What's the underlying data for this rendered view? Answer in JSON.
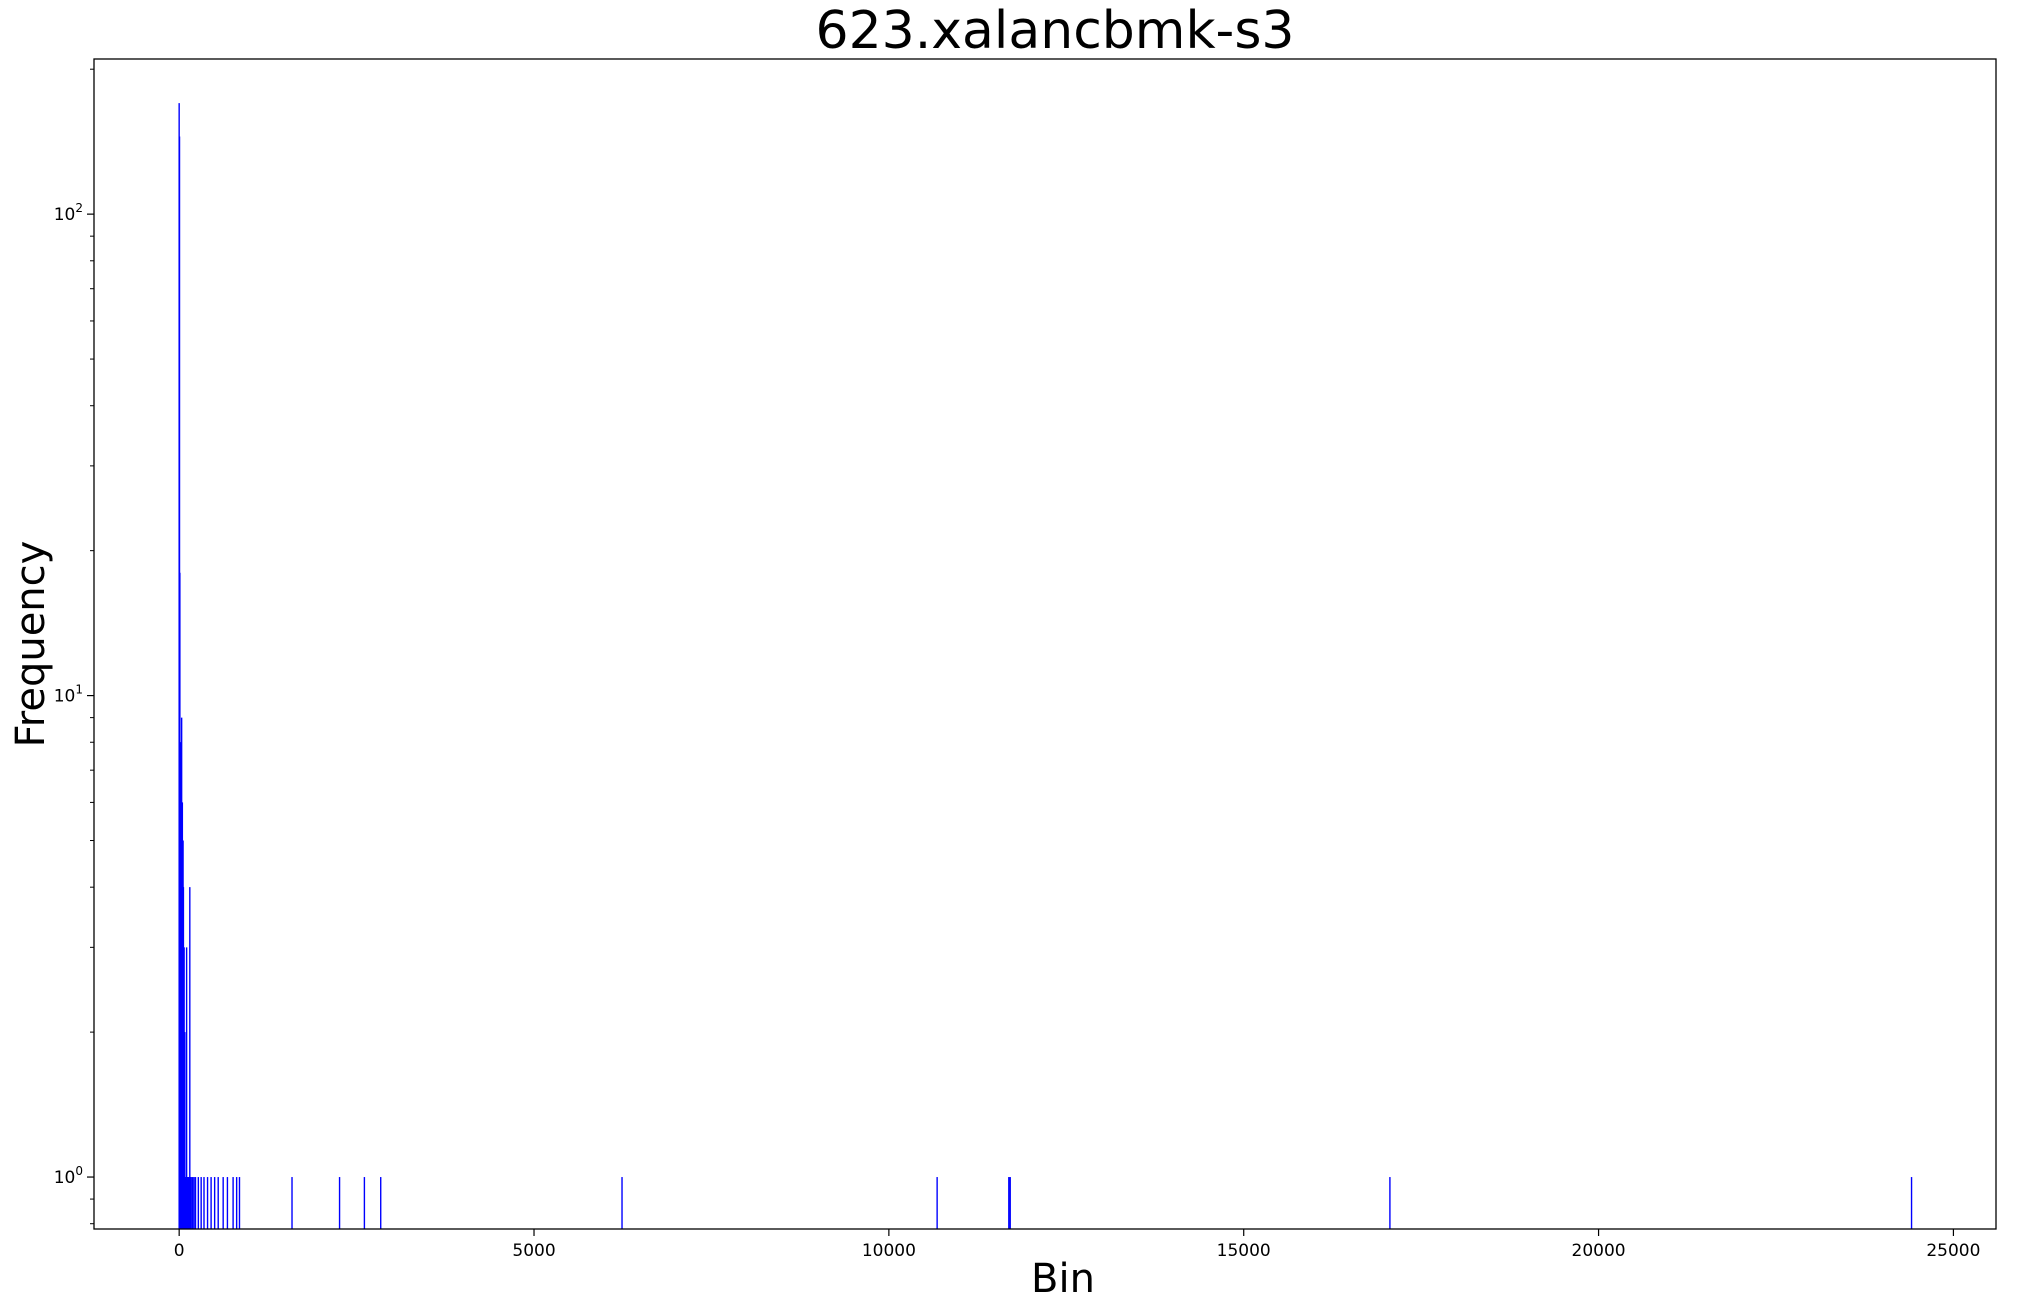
{
  "chart_data": {
    "type": "bar",
    "title": "623.xalancbmk-s3",
    "xlabel": "Bin",
    "ylabel": "Frequency",
    "xlim": [
      -1200,
      25600
    ],
    "ylim": [
      0.78,
      210
    ],
    "yscale": "log",
    "xticks": [
      0,
      5000,
      10000,
      15000,
      20000,
      25000
    ],
    "xtick_labels": [
      "0",
      "5000",
      "10000",
      "15000",
      "20000",
      "25000"
    ],
    "yticks": [
      {
        "value": 1,
        "base": "10",
        "exp": "0"
      },
      {
        "value": 10,
        "base": "10",
        "exp": "1"
      },
      {
        "value": 100,
        "base": "10",
        "exp": "2"
      }
    ],
    "grid": false,
    "bar_color": "#0000ff",
    "series": [
      {
        "bins": [
          0,
          5,
          10,
          15,
          20,
          25,
          30,
          35,
          40,
          45,
          50,
          55,
          60,
          65,
          70,
          75,
          80,
          85,
          90,
          95,
          100,
          105,
          110,
          115,
          120,
          130,
          140,
          150,
          160,
          170,
          190,
          210,
          230,
          270,
          310,
          350,
          400,
          450,
          500,
          550,
          620,
          680,
          760,
          810,
          850,
          1590,
          2260,
          2610,
          2840,
          6240,
          10680,
          11690,
          11710,
          17060,
          24410
        ],
        "values": [
          170,
          145,
          18,
          8,
          8,
          6,
          7,
          9,
          5,
          6,
          5,
          5,
          4,
          3,
          3,
          2,
          2,
          1,
          1,
          1,
          1,
          3,
          1,
          1,
          1,
          1,
          1,
          4,
          1,
          1,
          1,
          1,
          1,
          1,
          1,
          1,
          1,
          1,
          1,
          1,
          1,
          1,
          1,
          1,
          1,
          1,
          1,
          1,
          1,
          1,
          1,
          1,
          1,
          1,
          1
        ]
      }
    ]
  }
}
